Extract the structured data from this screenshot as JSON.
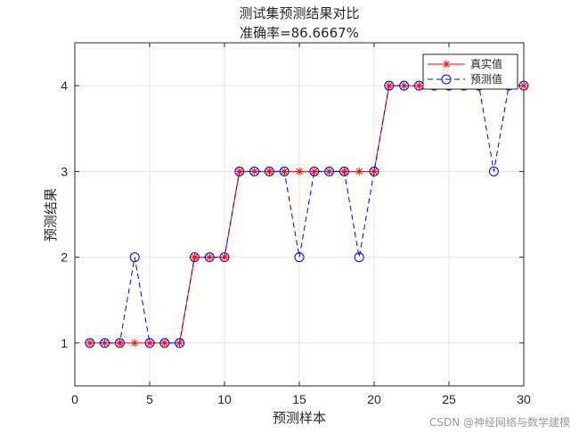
{
  "chart_data": {
    "type": "line",
    "title": "测试集预测结果对比",
    "subtitle": "准确率=86.6667%",
    "xlabel": "预测样本",
    "ylabel": "预测结果",
    "xlim": [
      0,
      30
    ],
    "ylim": [
      0.5,
      4.5
    ],
    "xticks": [
      0,
      5,
      10,
      15,
      20,
      25,
      30
    ],
    "yticks": [
      1,
      2,
      3,
      4
    ],
    "grid": true,
    "legend_position": "top-right",
    "x": [
      1,
      2,
      3,
      4,
      5,
      6,
      7,
      8,
      9,
      10,
      11,
      12,
      13,
      14,
      15,
      16,
      17,
      18,
      19,
      20,
      21,
      22,
      23,
      24,
      25,
      26,
      27,
      28,
      29,
      30
    ],
    "series": [
      {
        "name": "真实值",
        "color": "#ff0000",
        "line": "solid",
        "marker": "star",
        "values": [
          1,
          1,
          1,
          1,
          1,
          1,
          1,
          2,
          2,
          2,
          3,
          3,
          3,
          3,
          3,
          3,
          3,
          3,
          3,
          3,
          4,
          4,
          4,
          4,
          4,
          4,
          4,
          4,
          4,
          4
        ]
      },
      {
        "name": "预测值",
        "color": "#0000ff",
        "line": "dashed",
        "marker": "circle",
        "values": [
          1,
          1,
          1,
          2,
          1,
          1,
          1,
          2,
          2,
          2,
          3,
          3,
          3,
          3,
          2,
          3,
          3,
          3,
          2,
          3,
          4,
          4,
          4,
          4,
          4,
          4,
          4,
          3,
          4,
          4
        ]
      }
    ]
  },
  "watermark": "CSDN @神经网络与数学建模"
}
